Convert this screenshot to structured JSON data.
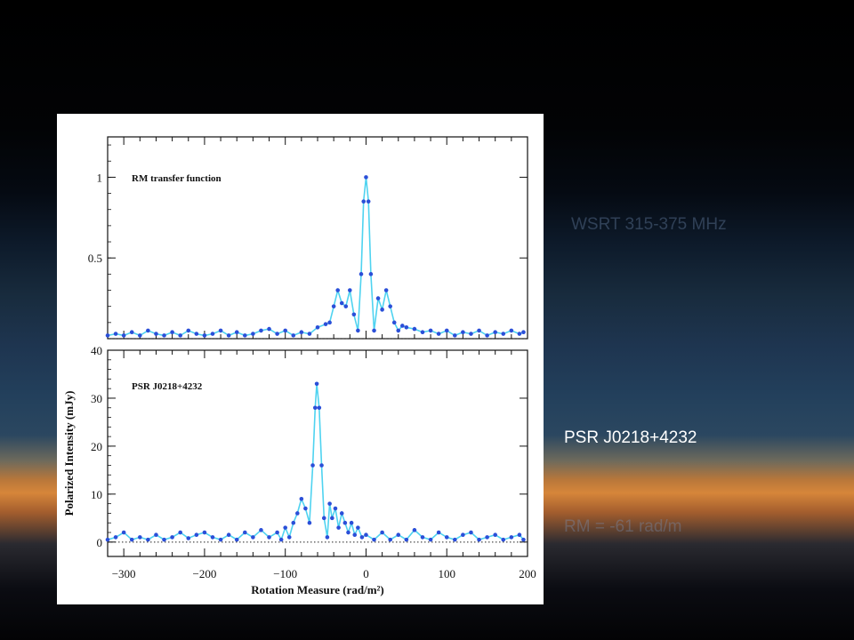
{
  "slide": {
    "label_1": "WSRT   315-375 MHz",
    "label_2": "PSR J0218+4232",
    "label_3": "RM = -61 rad/m"
  },
  "chart_data": [
    {
      "type": "line",
      "panel": "top",
      "annotation": "RM transfer function",
      "xlabel": "Rotation Measure (rad/m²)",
      "ylabel": "",
      "xlim": [
        -320,
        200
      ],
      "ylim": [
        0,
        1.25
      ],
      "xticks": [
        "−300",
        "−200",
        "−100",
        "0",
        "100",
        "200"
      ],
      "yticks": [
        "0.5",
        "1"
      ],
      "grid": false,
      "zero_line": "dotted",
      "series": [
        {
          "x": [
            -320,
            -310,
            -300,
            -290,
            -280,
            -270,
            -260,
            -250,
            -240,
            -230,
            -220,
            -210,
            -200,
            -190,
            -180,
            -170,
            -160,
            -150,
            -140,
            -130,
            -120,
            -110,
            -100,
            -90,
            -80,
            -70,
            -60,
            -50,
            -45,
            -40,
            -35,
            -30,
            -25,
            -20,
            -15,
            -10,
            -6,
            -3,
            0,
            3,
            6,
            10,
            15,
            20,
            25,
            30,
            35,
            40,
            45,
            50,
            60,
            70,
            80,
            90,
            100,
            110,
            120,
            130,
            140,
            150,
            160,
            170,
            180,
            190,
            195
          ],
          "y": [
            0.02,
            0.03,
            0.02,
            0.04,
            0.02,
            0.05,
            0.03,
            0.02,
            0.04,
            0.02,
            0.05,
            0.03,
            0.02,
            0.03,
            0.05,
            0.02,
            0.04,
            0.02,
            0.03,
            0.05,
            0.06,
            0.03,
            0.05,
            0.02,
            0.04,
            0.03,
            0.07,
            0.09,
            0.1,
            0.2,
            0.3,
            0.22,
            0.2,
            0.3,
            0.15,
            0.05,
            0.4,
            0.85,
            1.0,
            0.85,
            0.4,
            0.05,
            0.25,
            0.18,
            0.3,
            0.2,
            0.1,
            0.05,
            0.08,
            0.07,
            0.06,
            0.04,
            0.05,
            0.03,
            0.05,
            0.02,
            0.04,
            0.03,
            0.05,
            0.02,
            0.04,
            0.03,
            0.05,
            0.03,
            0.04
          ]
        }
      ]
    },
    {
      "type": "line",
      "panel": "bottom",
      "annotation": "PSR J0218+4232",
      "xlabel": "Rotation Measure (rad/m²)",
      "ylabel": "Polarized Intensity (mJy)",
      "xlim": [
        -320,
        200
      ],
      "ylim": [
        -3,
        40
      ],
      "xticks": [
        "−300",
        "−200",
        "−100",
        "0",
        "100",
        "200"
      ],
      "yticks": [
        "0",
        "10",
        "20",
        "30",
        "40"
      ],
      "grid": false,
      "zero_line": "dotted",
      "series": [
        {
          "x": [
            -320,
            -310,
            -300,
            -290,
            -280,
            -270,
            -260,
            -250,
            -240,
            -230,
            -220,
            -210,
            -200,
            -190,
            -180,
            -170,
            -160,
            -150,
            -140,
            -130,
            -120,
            -110,
            -105,
            -100,
            -95,
            -90,
            -85,
            -80,
            -75,
            -70,
            -66,
            -63,
            -61,
            -58,
            -55,
            -52,
            -48,
            -45,
            -42,
            -38,
            -34,
            -30,
            -26,
            -22,
            -18,
            -14,
            -10,
            -5,
            0,
            10,
            20,
            30,
            40,
            50,
            60,
            70,
            80,
            90,
            100,
            110,
            120,
            130,
            140,
            150,
            160,
            170,
            180,
            190,
            195
          ],
          "y": [
            0.5,
            1.0,
            2.0,
            0.5,
            1.0,
            0.5,
            1.5,
            0.5,
            1.0,
            2.0,
            0.8,
            1.5,
            2.0,
            1.0,
            0.5,
            1.5,
            0.5,
            2.0,
            1.0,
            2.5,
            1.0,
            2.0,
            0.5,
            3.0,
            1.0,
            4.0,
            6.0,
            9.0,
            7.0,
            4.0,
            16.0,
            28.0,
            33.0,
            28.0,
            16.0,
            5.0,
            1.0,
            8.0,
            5.0,
            7.0,
            3.0,
            6.0,
            4.0,
            2.0,
            4.0,
            1.5,
            3.0,
            1.0,
            1.5,
            0.5,
            2.0,
            0.5,
            1.5,
            0.5,
            2.5,
            1.0,
            0.5,
            2.0,
            1.0,
            0.5,
            1.5,
            2.0,
            0.5,
            1.0,
            1.5,
            0.5,
            1.0,
            1.5,
            0.5
          ]
        }
      ]
    }
  ]
}
